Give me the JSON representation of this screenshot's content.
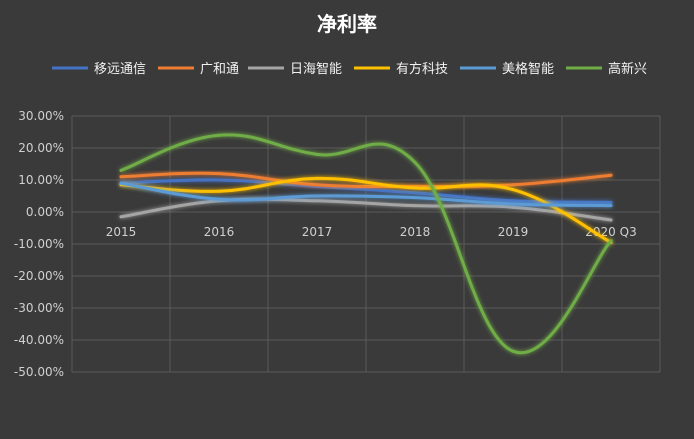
{
  "chart_data": {
    "type": "line",
    "title": "净利率",
    "categories": [
      "2015",
      "2016",
      "2017",
      "2018",
      "2019",
      "2020 Q3"
    ],
    "ylim": [
      -50,
      30
    ],
    "ytick_labels": [
      "30.00%",
      "20.00%",
      "10.00%",
      "0.00%",
      "-10.00%",
      "-20.00%",
      "-30.00%",
      "-40.00%",
      "-50.00%"
    ],
    "grid": true,
    "legend_position": "top",
    "series": [
      {
        "name": "移远通信",
        "color": "#4472c4",
        "values": [
          9.0,
          10.0,
          8.0,
          6.0,
          3.5,
          3.0
        ]
      },
      {
        "name": "广和通",
        "color": "#ed7d31",
        "values": [
          11.0,
          12.0,
          8.5,
          8.0,
          8.5,
          11.5
        ]
      },
      {
        "name": "日海智能",
        "color": "#a5a5a5",
        "values": [
          -1.5,
          3.5,
          3.5,
          2.0,
          1.5,
          -2.5
        ]
      },
      {
        "name": "有方科技",
        "color": "#ffc000",
        "values": [
          8.5,
          6.5,
          10.5,
          7.5,
          7.0,
          -9.5
        ]
      },
      {
        "name": "美格智能",
        "color": "#5b9bd5",
        "values": [
          9.0,
          4.0,
          5.0,
          4.5,
          2.5,
          2.0
        ]
      },
      {
        "name": "高新兴",
        "color": "#70ad47",
        "values": [
          13.0,
          24.0,
          18.0,
          15.5,
          -43.5,
          -9.0
        ]
      }
    ]
  }
}
